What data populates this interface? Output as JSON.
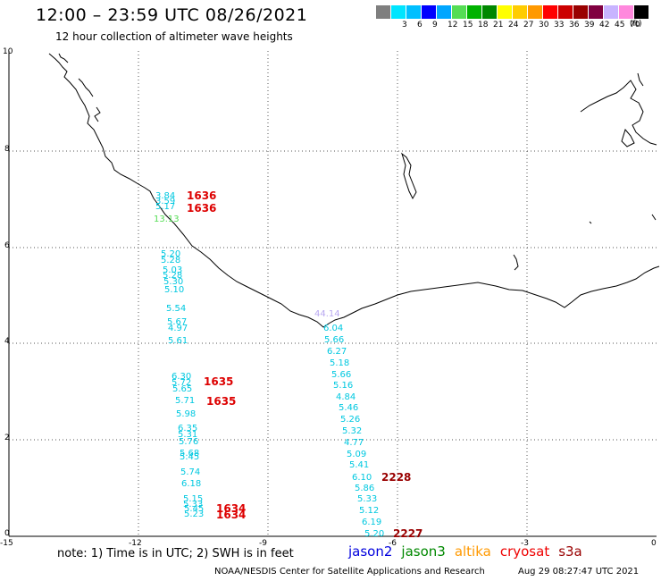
{
  "header": {
    "title": "12:00 – 23:59 UTC 08/26/2021",
    "subtitle": "12 hour collection of altimeter wave heights"
  },
  "legend": {
    "unit": "(ft)",
    "bins": [
      {
        "label": "",
        "color": "#7f7f7f"
      },
      {
        "label": "3",
        "color": "#00e5ff"
      },
      {
        "label": "6",
        "color": "#00bfff"
      },
      {
        "label": "9",
        "color": "#0000ff"
      },
      {
        "label": "12",
        "color": "#00a6ff"
      },
      {
        "label": "15",
        "color": "#55dd55"
      },
      {
        "label": "18",
        "color": "#00b200"
      },
      {
        "label": "21",
        "color": "#008800"
      },
      {
        "label": "24",
        "color": "#ffff00"
      },
      {
        "label": "27",
        "color": "#ffcc00"
      },
      {
        "label": "30",
        "color": "#ff9900"
      },
      {
        "label": "33",
        "color": "#ff0000"
      },
      {
        "label": "36",
        "color": "#cc0000"
      },
      {
        "label": "39",
        "color": "#990000"
      },
      {
        "label": "42",
        "color": "#800040"
      },
      {
        "label": "45",
        "color": "#c8b4ff"
      },
      {
        "label": "70",
        "color": "#ff88dd"
      },
      {
        "label": "",
        "color": "#000000"
      }
    ]
  },
  "axes": {
    "x_ticks": [
      "-15",
      "-12",
      "-9",
      "-6",
      "-3",
      "0"
    ],
    "y_ticks": [
      "0",
      "2",
      "4",
      "6",
      "8",
      "10"
    ]
  },
  "tracks": {
    "west_top": {
      "values": [
        "3.84",
        "3.59",
        "5.17"
      ],
      "time": "1636",
      "time2": "1636",
      "green_value": "13.13"
    },
    "west_middle": {
      "values": [
        "5.20",
        "5.28",
        "5.03",
        "5.28",
        "5.30",
        "5.10",
        "5.54",
        "5.67",
        "4.97",
        "5.61"
      ]
    },
    "west_lower": {
      "values": [
        "6.30",
        "5.72",
        "5.65",
        "5.71",
        "5.98",
        "6.35",
        "5.31",
        "5.76",
        "5.68",
        "5.45",
        "5.74",
        "6.18",
        "5.15",
        "5.33",
        "5.45",
        "5.23"
      ],
      "time": "1635",
      "time2": "1635",
      "time_bottom": "1634",
      "time_bottom2": "1634"
    },
    "east": {
      "purple_value": "44.14",
      "values": [
        "6.04",
        "5.66",
        "6.27",
        "5.18",
        "5.66",
        "5.16",
        "4.84",
        "5.46",
        "5.26",
        "5.32",
        "4.77",
        "5.09",
        "5.41",
        "6.10",
        "5.86",
        "5.33",
        "5.12",
        "6.19",
        "5.20"
      ],
      "time": "2228",
      "time_bottom": "2227"
    }
  },
  "footer": {
    "note": "note: 1) Time is in UTC; 2) SWH is in feet",
    "missions": [
      {
        "label": "jason2",
        "color": "#0000dd"
      },
      {
        "label": "jason3",
        "color": "#008800"
      },
      {
        "label": "altika",
        "color": "#ff9900"
      },
      {
        "label": "cryosat",
        "color": "#ee0000"
      },
      {
        "label": "s3a",
        "color": "#990000"
      }
    ],
    "credit": "NOAA/NESDIS Center for Satellite Applications and Research",
    "timestamp": "Aug 29 08:27:47 UTC 2021"
  }
}
